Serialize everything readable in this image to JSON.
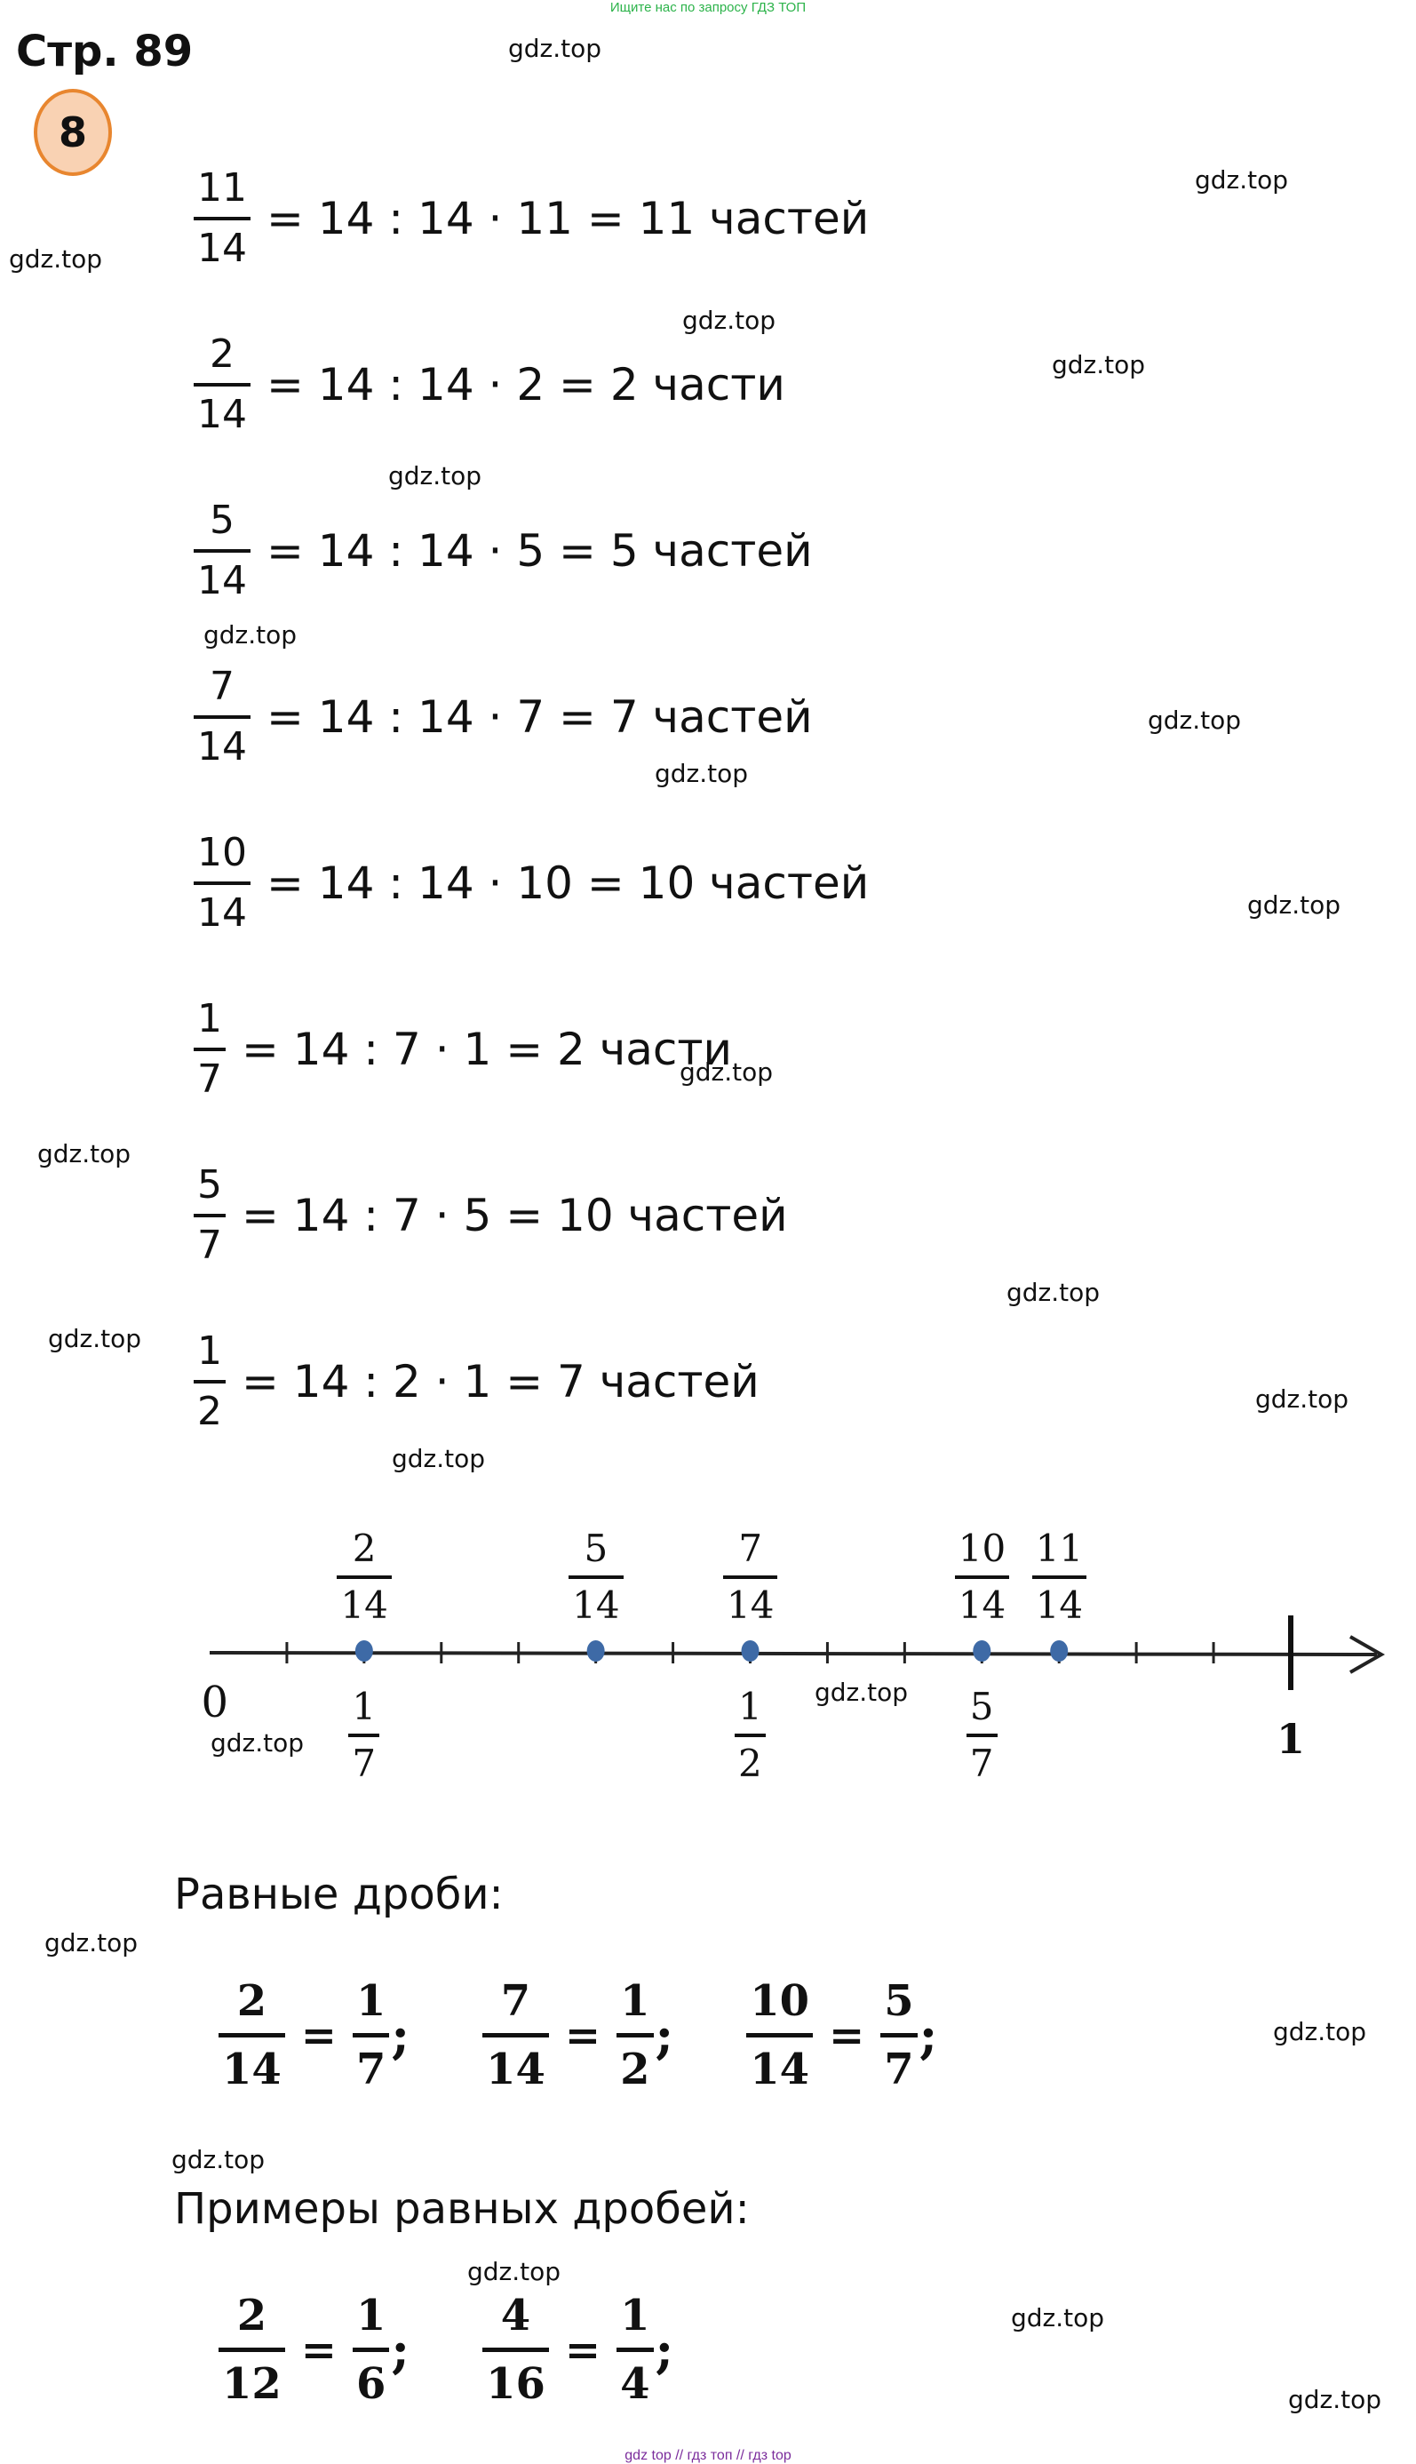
{
  "banner": "Ищите нас по запросу ГДЗ ТОП",
  "page_title": "Стр. 89",
  "task_number": "8",
  "watermark": "gdz.top",
  "equations": [
    {
      "num": "11",
      "den": "14",
      "expr": "= 14 : 14 · 11 = 11 частей"
    },
    {
      "num": "2",
      "den": "14",
      "expr": "= 14 : 14 · 2 = 2 части"
    },
    {
      "num": "5",
      "den": "14",
      "expr": "= 14 : 14 · 5 = 5 частей"
    },
    {
      "num": "7",
      "den": "14",
      "expr": "= 14 : 14 · 7 = 7 частей"
    },
    {
      "num": "10",
      "den": "14",
      "expr": "= 14 : 14 · 10 = 10 частей"
    },
    {
      "num": "1",
      "den": "7",
      "expr": "= 14 : 7 · 1 = 2 части"
    },
    {
      "num": "5",
      "den": "7",
      "expr": "= 14 : 7 · 5 = 10 частей"
    },
    {
      "num": "1",
      "den": "2",
      "expr": "= 14 : 2 · 1 = 7 частей"
    }
  ],
  "number_line": {
    "divisions": 14,
    "start_label": "0",
    "end_label": "1",
    "top_labels": [
      {
        "num": "2",
        "den": "14",
        "value": 0.142857
      },
      {
        "num": "5",
        "den": "14",
        "value": 0.357143
      },
      {
        "num": "7",
        "den": "14",
        "value": 0.5
      },
      {
        "num": "10",
        "den": "14",
        "value": 0.714286
      },
      {
        "num": "11",
        "den": "14",
        "value": 0.785714
      }
    ],
    "bottom_labels": [
      {
        "num": "1",
        "den": "7",
        "value": 0.142857
      },
      {
        "num": "1",
        "den": "2",
        "value": 0.5
      },
      {
        "num": "5",
        "den": "7",
        "value": 0.714286
      }
    ],
    "dot_color": "#3e6aa6"
  },
  "equal_heading": "Равные дроби:",
  "equal_fractions": [
    {
      "a_num": "2",
      "a_den": "14",
      "b_num": "1",
      "b_den": "7"
    },
    {
      "a_num": "7",
      "a_den": "14",
      "b_num": "1",
      "b_den": "2"
    },
    {
      "a_num": "10",
      "a_den": "14",
      "b_num": "5",
      "b_den": "7"
    }
  ],
  "examples_heading": "Примеры равных дробей:",
  "example_fractions": [
    {
      "a_num": "2",
      "a_den": "12",
      "b_num": "1",
      "b_den": "6"
    },
    {
      "a_num": "4",
      "a_den": "16",
      "b_num": "1",
      "b_den": "4"
    }
  ],
  "eq_sign": "=",
  "separator": ";",
  "footer": "gdz top  //  гдз топ  //  гдз top",
  "colors": {
    "banner": "#2cb34a",
    "badge_fill": "#f9d2b3",
    "badge_border": "#e8862f",
    "footer": "#7b2d9c"
  }
}
